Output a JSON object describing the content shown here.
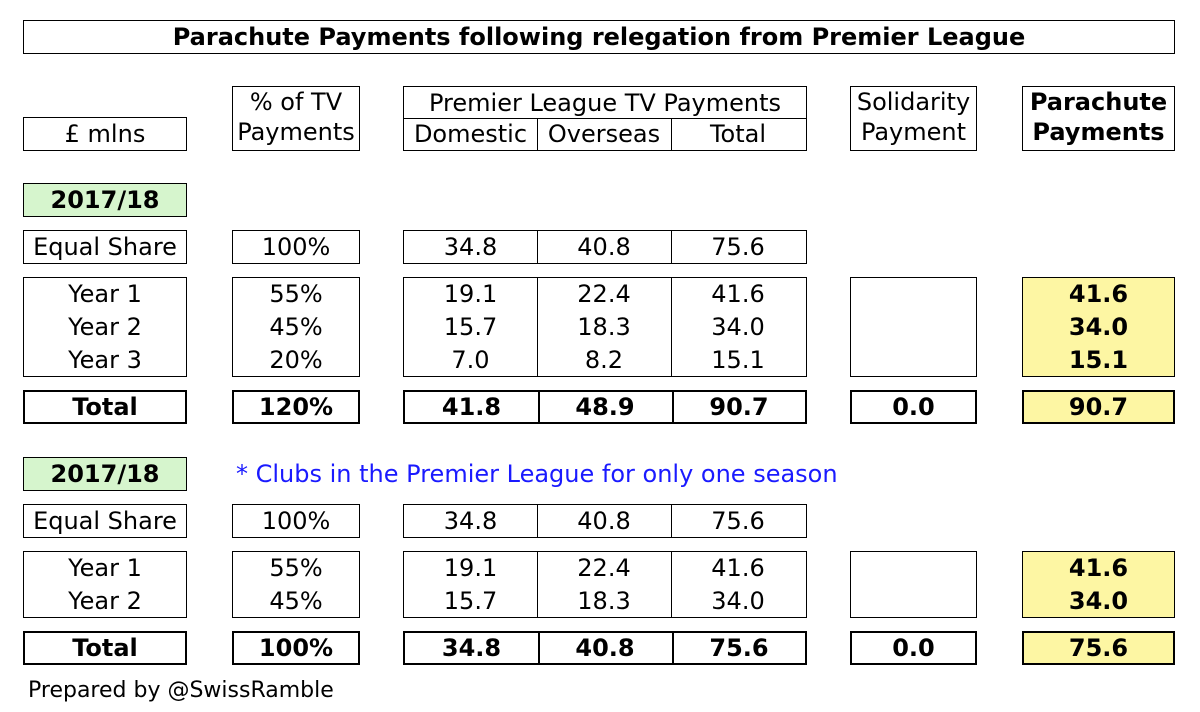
{
  "title": "Parachute Payments following relegation from Premier League",
  "header": {
    "units": "£ mlns",
    "pct_line1": "% of TV",
    "pct_line2": "Payments",
    "pl_group": "Premier League TV Payments",
    "domestic": "Domestic",
    "overseas": "Overseas",
    "total": "Total",
    "solidarity_line1": "Solidarity",
    "solidarity_line2": "Payment",
    "parachute_line1": "Parachute",
    "parachute_line2": "Payments"
  },
  "section1": {
    "season": "2017/18",
    "equal_share": {
      "label": "Equal Share",
      "pct": "100%",
      "domestic": "34.8",
      "overseas": "40.8",
      "total": "75.6"
    },
    "years": [
      {
        "label": "Year 1",
        "pct": "55%",
        "domestic": "19.1",
        "overseas": "22.4",
        "total": "41.6",
        "parachute": "41.6"
      },
      {
        "label": "Year 2",
        "pct": "45%",
        "domestic": "15.7",
        "overseas": "18.3",
        "total": "34.0",
        "parachute": "34.0"
      },
      {
        "label": "Year 3",
        "pct": "20%",
        "domestic": "7.0",
        "overseas": "8.2",
        "total": "15.1",
        "parachute": "15.1"
      }
    ],
    "totals": {
      "label": "Total",
      "pct": "120%",
      "domestic": "41.8",
      "overseas": "48.9",
      "total": "90.7",
      "solidarity": "0.0",
      "parachute": "90.7"
    }
  },
  "section2": {
    "season": "2017/18",
    "note": "* Clubs in the Premier League for only one season",
    "equal_share": {
      "label": "Equal Share",
      "pct": "100%",
      "domestic": "34.8",
      "overseas": "40.8",
      "total": "75.6"
    },
    "years": [
      {
        "label": "Year 1",
        "pct": "55%",
        "domestic": "19.1",
        "overseas": "22.4",
        "total": "41.6",
        "parachute": "41.6"
      },
      {
        "label": "Year 2",
        "pct": "45%",
        "domestic": "15.7",
        "overseas": "18.3",
        "total": "34.0",
        "parachute": "34.0"
      }
    ],
    "totals": {
      "label": "Total",
      "pct": "100%",
      "domestic": "34.8",
      "overseas": "40.8",
      "total": "75.6",
      "solidarity": "0.0",
      "parachute": "75.6"
    }
  },
  "credit": "Prepared by @SwissRamble",
  "colors": {
    "parachute_fill": "#fdf6a3",
    "season_fill": "#d6f5cd",
    "note_text": "#1a1aff"
  }
}
